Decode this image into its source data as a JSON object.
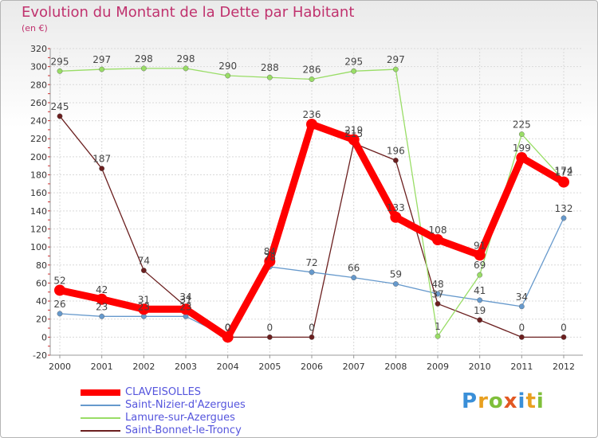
{
  "title": "Evolution du Montant de la Dette par Habitant",
  "subtitle": "(en €)",
  "logo": "Proxiti",
  "chart_data": {
    "type": "line",
    "title": "Evolution du Montant de la Dette par Habitant",
    "ylabel": "(en €)",
    "ylim": [
      -20,
      320
    ],
    "ystep": 20,
    "x": [
      "2000",
      "2001",
      "2002",
      "2003",
      "2004",
      "2005",
      "2006",
      "2007",
      "2008",
      "2009",
      "2010",
      "2011",
      "2012"
    ],
    "grid": true,
    "legend_position": "bottom-left",
    "series": [
      {
        "name": "CLAVEISOLLES",
        "color": "#ff0000",
        "values": [
          52,
          42,
          31,
          31,
          0,
          84,
          236,
          219,
          133,
          108,
          91,
          199,
          172
        ]
      },
      {
        "name": "Saint-Nizier-d'Azergues",
        "color": "#6699cc",
        "values": [
          26,
          23,
          23,
          23,
          0,
          78,
          72,
          66,
          59,
          48,
          41,
          34,
          132
        ]
      },
      {
        "name": "Lamure-sur-Azergues",
        "color": "#99dd66",
        "values": [
          295,
          297,
          298,
          298,
          290,
          288,
          286,
          295,
          297,
          1,
          69,
          225,
          174
        ]
      },
      {
        "name": "Saint-Bonnet-le-Troncy",
        "color": "#6b1f1f",
        "values": [
          245,
          187,
          74,
          34,
          0,
          0,
          0,
          215,
          196,
          37,
          19,
          0,
          0
        ]
      }
    ]
  }
}
